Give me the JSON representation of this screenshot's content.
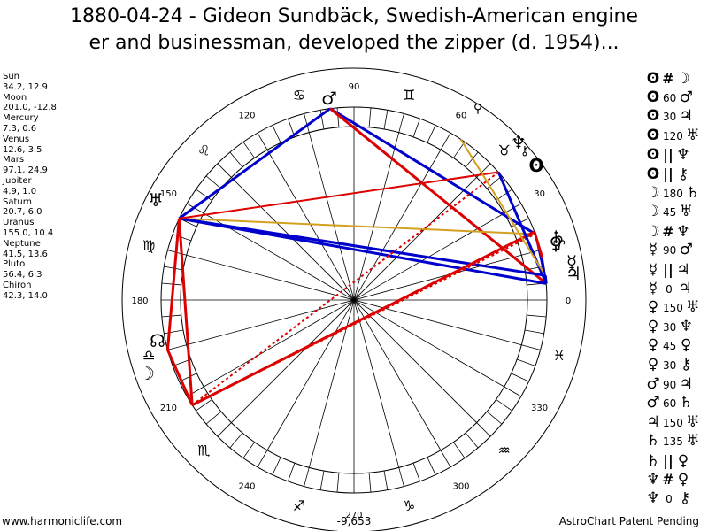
{
  "title": {
    "line1": "1880-04-24 - Gideon Sundbäck, Swedish-American engine",
    "line2": "er and businessman, developed the zipper (d. 1954)..."
  },
  "positions": [
    {
      "name": "Sun",
      "values": "34.2, 12.9"
    },
    {
      "name": "Moon",
      "values": "201.0, -12.8"
    },
    {
      "name": "Mercury",
      "values": "7.3, 0.6"
    },
    {
      "name": "Venus",
      "values": "12.6, 3.5"
    },
    {
      "name": "Mars",
      "values": "97.1, 24.9"
    },
    {
      "name": "Jupiter",
      "values": "4.9, 1.0"
    },
    {
      "name": "Saturn",
      "values": "20.7, 6.0"
    },
    {
      "name": "Uranus",
      "values": "155.0, 10.4"
    },
    {
      "name": "Neptune",
      "values": "41.5, 13.6"
    },
    {
      "name": "Pluto",
      "values": "56.4, 6.3"
    },
    {
      "name": "Chiron",
      "values": "42.3, 14.0"
    }
  ],
  "glyphs": {
    "Sun": "ʘ",
    "Moon": "☽",
    "Mercury": "☿",
    "Venus": "♀",
    "Mars": "♂",
    "Jupiter": "♃",
    "Saturn": "♄",
    "Uranus": "♅",
    "Neptune": "♆",
    "Pluto": "♀",
    "Chiron": "⚷",
    "Node": "☊"
  },
  "aspects": [
    {
      "p1": "ʘ",
      "sym": "#",
      "p2": "☽"
    },
    {
      "p1": "ʘ",
      "sym": "60",
      "p2": "♂"
    },
    {
      "p1": "ʘ",
      "sym": "30",
      "p2": "♃"
    },
    {
      "p1": "ʘ",
      "sym": "120",
      "p2": "♅"
    },
    {
      "p1": "ʘ",
      "sym": "||",
      "p2": "♆"
    },
    {
      "p1": "ʘ",
      "sym": "||",
      "p2": "⚷"
    },
    {
      "p1": "☽",
      "sym": "180",
      "p2": "♄"
    },
    {
      "p1": "☽",
      "sym": "45",
      "p2": "♅"
    },
    {
      "p1": "☽",
      "sym": "#",
      "p2": "♆"
    },
    {
      "p1": "☿",
      "sym": "90",
      "p2": "♂"
    },
    {
      "p1": "☿",
      "sym": "||",
      "p2": "♃"
    },
    {
      "p1": "☿",
      "sym": "0",
      "p2": "♃"
    },
    {
      "p1": "♀",
      "sym": "150",
      "p2": "♅"
    },
    {
      "p1": "♀",
      "sym": "30",
      "p2": "♆"
    },
    {
      "p1": "♀",
      "sym": "45",
      "p2": "♀"
    },
    {
      "p1": "♀",
      "sym": "30",
      "p2": "⚷"
    },
    {
      "p1": "♂",
      "sym": "90",
      "p2": "♃"
    },
    {
      "p1": "♂",
      "sym": "60",
      "p2": "♄"
    },
    {
      "p1": "♃",
      "sym": "150",
      "p2": "♅"
    },
    {
      "p1": "♄",
      "sym": "135",
      "p2": "♅"
    },
    {
      "p1": "♄",
      "sym": "||",
      "p2": "♀"
    },
    {
      "p1": "♆",
      "sym": "#",
      "p2": "♀"
    },
    {
      "p1": "♆",
      "sym": "0",
      "p2": "⚷"
    }
  ],
  "wheel": {
    "degree_labels": [
      "0",
      "30",
      "60",
      "90",
      "120",
      "150",
      "180",
      "210",
      "240",
      "270",
      "300",
      "330"
    ],
    "signs": [
      "♈",
      "♉",
      "♊",
      "♋",
      "♌",
      "♍",
      "♎",
      "♏",
      "♐",
      "♑",
      "♒",
      "♓"
    ],
    "center_value": "-9,653"
  },
  "colors": {
    "trine_sextile": "#0000cc",
    "square_opposition": "#dd0000",
    "minor": "#d4a020"
  },
  "footer": {
    "left": "www.harmoniclife.com",
    "right": "AstroChart Patent Pending"
  }
}
